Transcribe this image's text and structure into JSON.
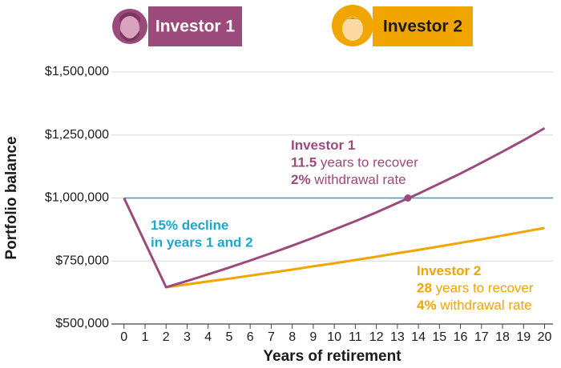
{
  "chart_data": {
    "type": "line",
    "x_label": "Years of retirement",
    "y_label": "Portfolio balance",
    "x": [
      0,
      1,
      2,
      3,
      4,
      5,
      6,
      7,
      8,
      9,
      10,
      11,
      12,
      13,
      14,
      15,
      16,
      17,
      18,
      19,
      20
    ],
    "series": [
      {
        "name": "Investor 1",
        "color": "#9b4a7b",
        "values": [
          1000000,
          823000,
          646000,
          671000,
          697000,
          724000,
          752000,
          781000,
          811000,
          842000,
          875000,
          908000,
          943000,
          980000,
          1017000,
          1057000,
          1097000,
          1140000,
          1184000,
          1229000,
          1277000
        ]
      },
      {
        "name": "Investor 2",
        "color": "#f0a500",
        "values": [
          null,
          null,
          646000,
          657000,
          669000,
          680000,
          692000,
          704000,
          716000,
          729000,
          741000,
          754000,
          767000,
          781000,
          794000,
          808000,
          822000,
          836000,
          851000,
          866000,
          881000
        ]
      }
    ],
    "reference_line": {
      "y": 1000000,
      "color": "#1aa6d0"
    },
    "marker": {
      "x": 13.5,
      "y": 1000000,
      "color": "#9b4a7b"
    },
    "annotations": [
      {
        "color": "#9b4a7b",
        "lines": [
          [
            "Investor 1"
          ],
          [
            "11.5",
            " years to recover"
          ],
          [
            "2%",
            " withdrawal rate"
          ]
        ]
      },
      {
        "color": "#1aa6d0",
        "lines": [
          [
            "15% decline"
          ],
          [
            "in years 1 and 2"
          ]
        ]
      },
      {
        "color": "#f0a500",
        "lines": [
          [
            "Investor 2"
          ],
          [
            "28",
            " years to recover"
          ],
          [
            "4%",
            " withdrawal rate"
          ]
        ]
      }
    ],
    "xlim": [
      -0.6,
      20.4
    ],
    "xticks": [
      0,
      1,
      2,
      3,
      4,
      5,
      6,
      7,
      8,
      9,
      10,
      11,
      12,
      13,
      14,
      15,
      16,
      17,
      18,
      19,
      20
    ],
    "ylim": [
      500000,
      1500000
    ],
    "yticks": [
      {
        "value": 500000,
        "label": "$500,000"
      },
      {
        "value": 750000,
        "label": "$750,000"
      },
      {
        "value": 1000000,
        "label": "$1,000,000"
      },
      {
        "value": 1250000,
        "label": "$1,250,000"
      },
      {
        "value": 1500000,
        "label": "$1,500,000"
      }
    ],
    "grid": true
  }
}
